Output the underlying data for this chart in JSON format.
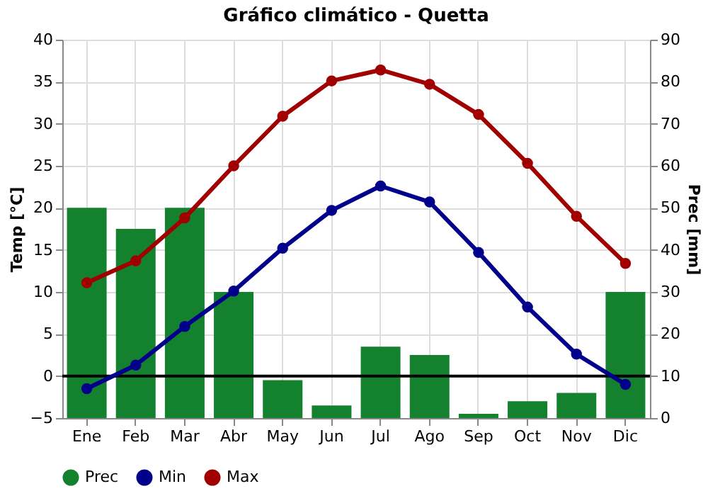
{
  "chart_data": {
    "type": "line",
    "title": "Gráfico climático - Quetta",
    "ylabel": "Temp [°C]",
    "y2label": "Prec [mm]",
    "categories": [
      "Ene",
      "Feb",
      "Mar",
      "Abr",
      "May",
      "Jun",
      "Jul",
      "Ago",
      "Sep",
      "Oct",
      "Nov",
      "Dic"
    ],
    "series": [
      {
        "name": "Prec",
        "type": "bar",
        "axis": "y2",
        "color": "#14812f",
        "values": [
          50,
          45,
          50,
          30,
          9,
          3,
          17,
          15,
          1,
          4,
          6,
          30
        ]
      },
      {
        "name": "Min",
        "color": "#00008b",
        "values": [
          -1.5,
          1.3,
          5.9,
          10.1,
          15.2,
          19.7,
          22.6,
          20.7,
          14.7,
          8.2,
          2.6,
          -1.0
        ]
      },
      {
        "name": "Max",
        "color": "#a00000",
        "values": [
          11.1,
          13.7,
          18.8,
          25.0,
          30.9,
          35.1,
          36.4,
          34.7,
          31.1,
          25.3,
          19.0,
          13.4
        ]
      }
    ],
    "ylim": [
      -5,
      40
    ],
    "yticks": [
      -5,
      0,
      5,
      10,
      15,
      20,
      25,
      30,
      35,
      40
    ],
    "y2lim": [
      0,
      90
    ],
    "y2ticks": [
      0,
      10,
      20,
      30,
      40,
      50,
      60,
      70,
      80,
      90
    ],
    "ref_lines": [
      {
        "axis": "y",
        "value": 0,
        "color": "#000000"
      }
    ],
    "grid": true,
    "legend": "bottom",
    "marker": "circle",
    "line_style": "solid"
  }
}
